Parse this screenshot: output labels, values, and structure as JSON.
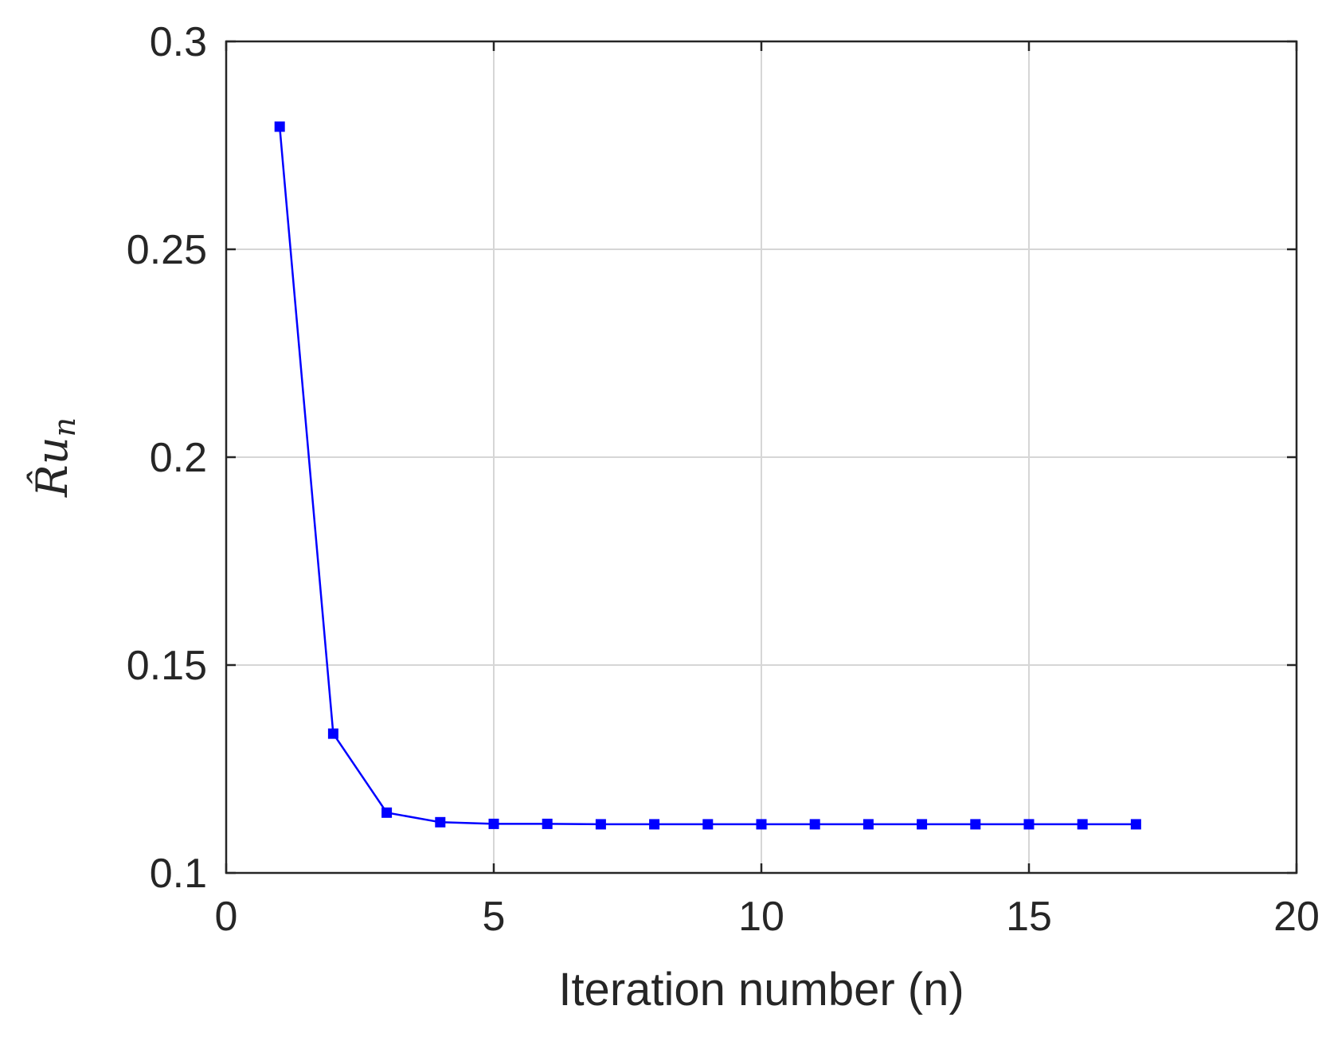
{
  "chart_data": {
    "type": "line",
    "title": "",
    "xlabel": "Iteration number (n)",
    "ylabel": {
      "main": "R̂u",
      "subscript": "n"
    },
    "xlim": [
      0,
      20
    ],
    "ylim": [
      0.1,
      0.3
    ],
    "xticks": [
      "0",
      "5",
      "10",
      "15",
      "20"
    ],
    "yticks": [
      "0.1",
      "0.15",
      "0.2",
      "0.25",
      "0.3"
    ],
    "grid": true,
    "series": [
      {
        "color": "#0000ff",
        "marker": "square",
        "x": [
          1,
          2,
          3,
          4,
          5,
          6,
          7,
          8,
          9,
          10,
          11,
          12,
          13,
          14,
          15,
          16,
          17
        ],
        "y": [
          0.2795,
          0.1335,
          0.1145,
          0.1122,
          0.1118,
          0.1118,
          0.1117,
          0.1117,
          0.1117,
          0.1117,
          0.1117,
          0.1117,
          0.1117,
          0.1117,
          0.1117,
          0.1117,
          0.1117
        ]
      }
    ]
  }
}
